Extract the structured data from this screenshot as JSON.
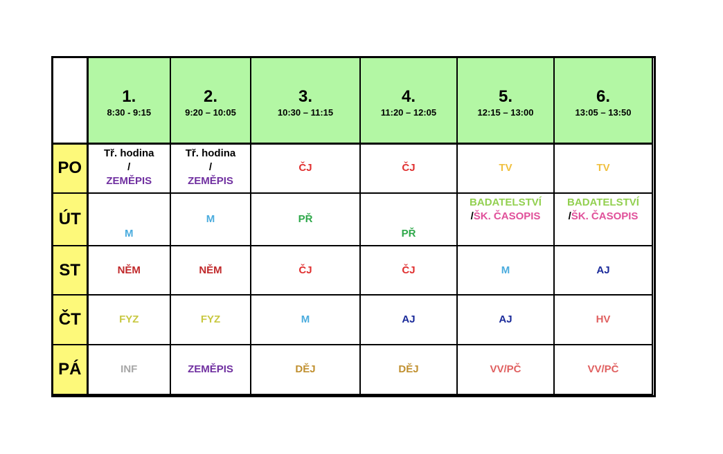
{
  "colors": {
    "header_bg": "#b3f7a4",
    "day_bg": "#fdf97a",
    "grid": "#000000"
  },
  "periods": [
    {
      "num": "1.",
      "time": "8:30 - 9:15"
    },
    {
      "num": "2.",
      "time": "9:20 – 10:05"
    },
    {
      "num": "3.",
      "time": "10:30 – 11:15"
    },
    {
      "num": "4.",
      "time": "11:20 – 12:05"
    },
    {
      "num": "5.",
      "time": "12:15 – 13:00"
    },
    {
      "num": "6.",
      "time": "13:05 – 13:50"
    }
  ],
  "rows": [
    {
      "day": "PO",
      "cells": [
        {
          "lines": [
            {
              "text": "Tř. hodina",
              "color": "#000000"
            },
            {
              "text": "/",
              "color": "#000000"
            },
            {
              "text": "ZEMĚPIS",
              "color": "#7030a0"
            }
          ]
        },
        {
          "lines": [
            {
              "text": "Tř. hodina",
              "color": "#000000"
            },
            {
              "text": "/",
              "color": "#000000"
            },
            {
              "text": "ZEMĚPIS",
              "color": "#7030a0"
            }
          ]
        },
        {
          "lines": [
            {
              "text": "ČJ",
              "color": "#e03030"
            }
          ]
        },
        {
          "lines": [
            {
              "text": "ČJ",
              "color": "#e03030"
            }
          ]
        },
        {
          "lines": [
            {
              "text": "TV",
              "color": "#f0c040"
            }
          ]
        },
        {
          "lines": [
            {
              "text": "TV",
              "color": "#f0c040"
            }
          ]
        }
      ]
    },
    {
      "day": "ÚT",
      "cells": [
        {
          "lines": [
            {
              "text": "M",
              "color": "#4bacde"
            }
          ]
        },
        {
          "lines": [
            {
              "text": "M",
              "color": "#4bacde"
            }
          ]
        },
        {
          "lines": [
            {
              "text": "PŘ",
              "color": "#2ea84a"
            }
          ]
        },
        {
          "lines": [
            {
              "text": "PŘ",
              "color": "#2ea84a"
            }
          ]
        },
        {
          "lines": [
            {
              "text": "BADATELSTVÍ",
              "color": "#92d050"
            },
            {
              "text": "/ŠK. ČASOPIS",
              "color": "#e0509a",
              "prefix": "/",
              "prefix_color": "#000000",
              "rest": "ŠK. ČASOPIS"
            }
          ]
        },
        {
          "lines": [
            {
              "text": "BADATELSTVÍ",
              "color": "#92d050"
            },
            {
              "text": "/ŠK. ČASOPIS",
              "color": "#e0509a",
              "prefix": "/",
              "prefix_color": "#000000",
              "rest": "ŠK. ČASOPIS"
            }
          ]
        }
      ]
    },
    {
      "day": "ST",
      "cells": [
        {
          "lines": [
            {
              "text": "NĚM",
              "color": "#c0282a"
            }
          ]
        },
        {
          "lines": [
            {
              "text": "NĚM",
              "color": "#c0282a"
            }
          ]
        },
        {
          "lines": [
            {
              "text": "ČJ",
              "color": "#e03030"
            }
          ]
        },
        {
          "lines": [
            {
              "text": "ČJ",
              "color": "#e03030"
            }
          ]
        },
        {
          "lines": [
            {
              "text": "M",
              "color": "#4bacde"
            }
          ]
        },
        {
          "lines": [
            {
              "text": "AJ",
              "color": "#1a2a9a"
            }
          ]
        }
      ]
    },
    {
      "day": "ČT",
      "cells": [
        {
          "lines": [
            {
              "text": "FYZ",
              "color": "#c8c840"
            }
          ]
        },
        {
          "lines": [
            {
              "text": "FYZ",
              "color": "#c8c840"
            }
          ]
        },
        {
          "lines": [
            {
              "text": "M",
              "color": "#4bacde"
            }
          ]
        },
        {
          "lines": [
            {
              "text": "AJ",
              "color": "#1a2a9a"
            }
          ]
        },
        {
          "lines": [
            {
              "text": "AJ",
              "color": "#1a2a9a"
            }
          ]
        },
        {
          "lines": [
            {
              "text": "HV",
              "color": "#e06060"
            }
          ]
        }
      ]
    },
    {
      "day": "PÁ",
      "cells": [
        {
          "lines": [
            {
              "text": "INF",
              "color": "#a6a6a6"
            }
          ]
        },
        {
          "lines": [
            {
              "text": "ZEMĚPIS",
              "color": "#7030a0"
            }
          ]
        },
        {
          "lines": [
            {
              "text": "DĚJ",
              "color": "#c09030"
            }
          ]
        },
        {
          "lines": [
            {
              "text": "DĚJ",
              "color": "#c09030"
            }
          ]
        },
        {
          "lines": [
            {
              "text": "VV/PČ",
              "color": "#e06060"
            }
          ]
        },
        {
          "lines": [
            {
              "text": "VV/PČ",
              "color": "#e06060"
            }
          ]
        }
      ]
    }
  ]
}
